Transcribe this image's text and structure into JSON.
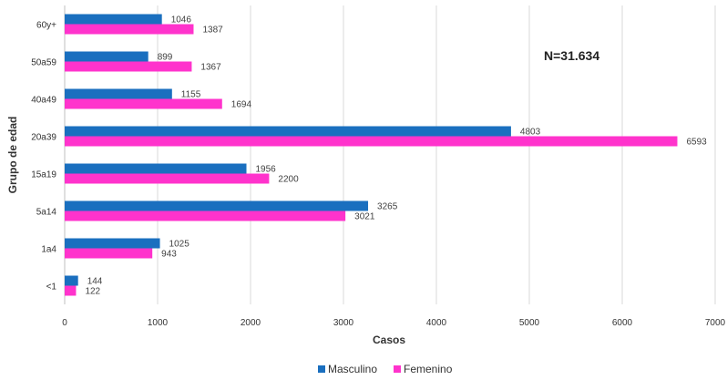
{
  "chart_data": {
    "type": "bar",
    "orientation": "horizontal",
    "categories": [
      "60y+",
      "50a59",
      "40a49",
      "20a39",
      "15a19",
      "5a14",
      "1a4",
      "<1"
    ],
    "series": [
      {
        "name": "Masculino",
        "color": "#1a6fbf",
        "values": [
          1046,
          899,
          1155,
          4803,
          1956,
          3265,
          1025,
          144
        ]
      },
      {
        "name": "Femenino",
        "color": "#ff33cc",
        "values": [
          1387,
          1367,
          1694,
          6593,
          2200,
          3021,
          943,
          122
        ]
      }
    ],
    "xlabel": "Casos",
    "ylabel": "Grupo de edad",
    "xlim": [
      0,
      7000
    ],
    "xticks": [
      0,
      1000,
      2000,
      3000,
      4000,
      5000,
      6000,
      7000
    ],
    "grid": true,
    "legend_position": "bottom",
    "annotation": "N=31.634"
  }
}
